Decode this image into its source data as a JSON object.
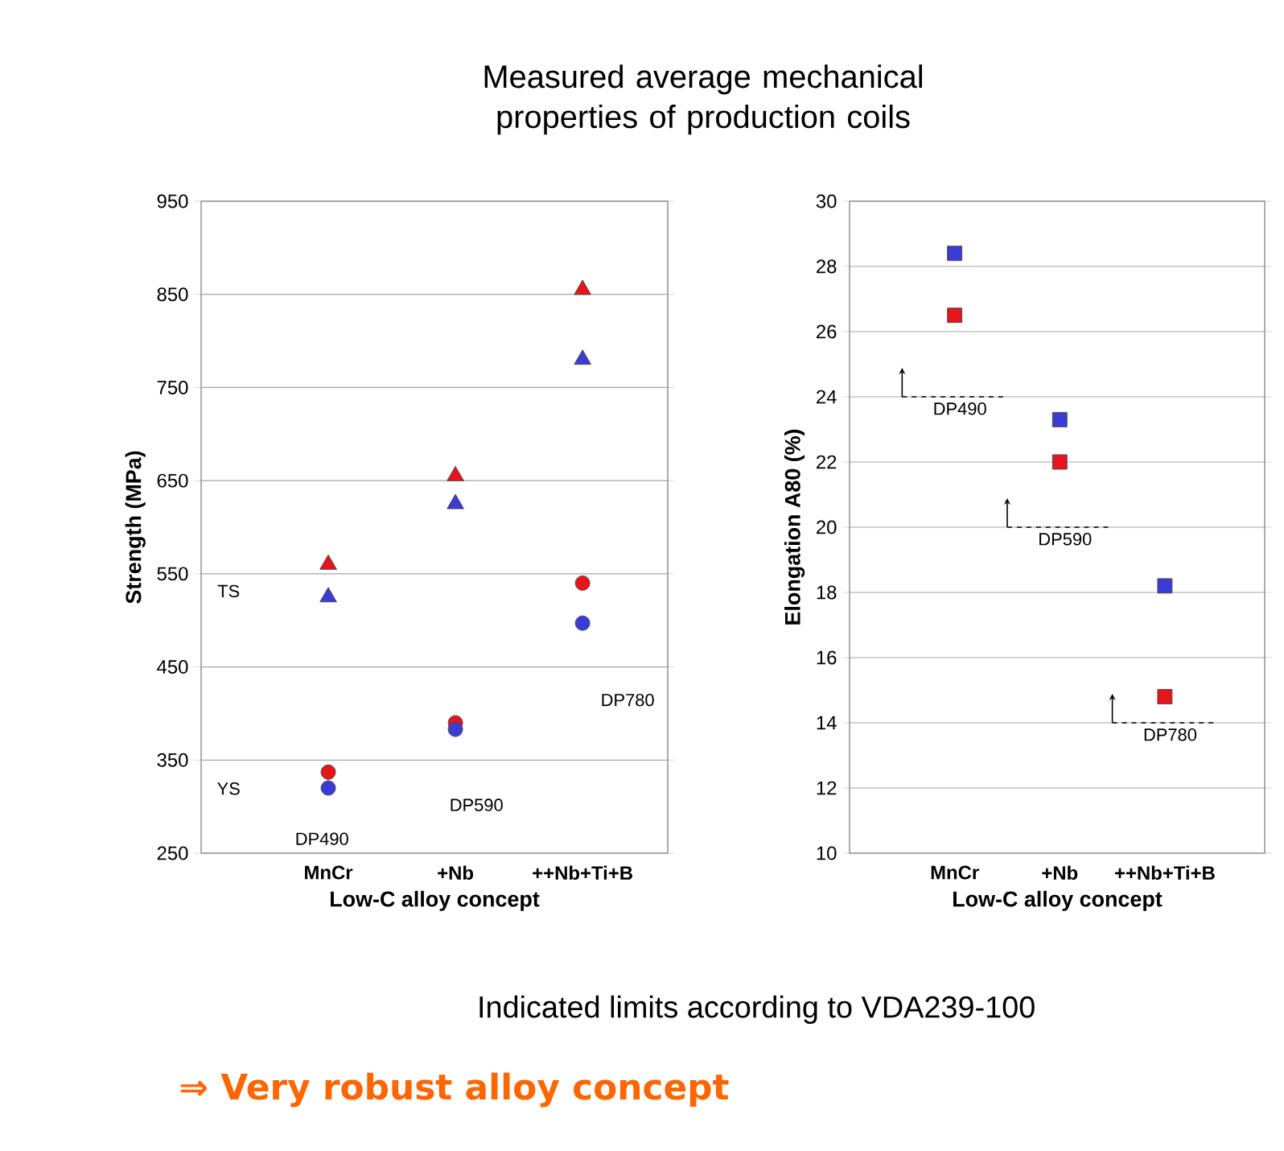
{
  "chart_data": [
    {
      "type": "scatter",
      "title": "Measured average mechanical properties of production coils",
      "xlabel": "Low-C alloy concept",
      "ylabel": "Strength (MPa)",
      "categories": [
        "MnCr",
        "+Nb",
        "++Nb+Ti+B"
      ],
      "ylim": [
        250,
        950
      ],
      "yticks": [
        250,
        350,
        450,
        550,
        650,
        750,
        850,
        950
      ],
      "grid": "y",
      "series": [
        {
          "color": "#e8141b",
          "marker": "triangle",
          "values": [
            560,
            655,
            855
          ]
        },
        {
          "color": "#3b3bd6",
          "marker": "triangle",
          "values": [
            525,
            625,
            780
          ]
        },
        {
          "color": "#e8141b",
          "marker": "circle",
          "values": [
            337,
            390,
            540
          ]
        },
        {
          "color": "#3b3bd6",
          "marker": "circle",
          "values": [
            320,
            383,
            497
          ]
        }
      ],
      "annotations": [
        "TS",
        "YS",
        "DP490",
        "DP590",
        "DP780",
        "Indicated limits according to VDA239-100",
        "⇒ Very robust alloy concept"
      ]
    },
    {
      "type": "scatter",
      "xlabel": "Low-C alloy concept",
      "ylabel": "Elongation A80 (%)",
      "categories": [
        "MnCr",
        "+Nb",
        "++Nb+Ti+B"
      ],
      "ylim": [
        10,
        30
      ],
      "yticks": [
        10,
        12,
        14,
        16,
        18,
        20,
        22,
        24,
        26,
        28,
        30
      ],
      "grid": "y",
      "marker": "square",
      "series": [
        {
          "color": "#3b3bd6",
          "values": [
            28.4,
            23.3,
            18.2
          ]
        },
        {
          "color": "#e8141b",
          "values": [
            26.5,
            22.0,
            14.8
          ]
        }
      ],
      "ref_lines": [
        {
          "axis": "y",
          "value": 24,
          "label": "DP490",
          "line_style": "dashed"
        },
        {
          "axis": "y",
          "value": 20,
          "label": "DP590",
          "line_style": "dashed"
        },
        {
          "axis": "y",
          "value": 14,
          "label": "DP780",
          "line_style": "dashed"
        }
      ]
    }
  ]
}
